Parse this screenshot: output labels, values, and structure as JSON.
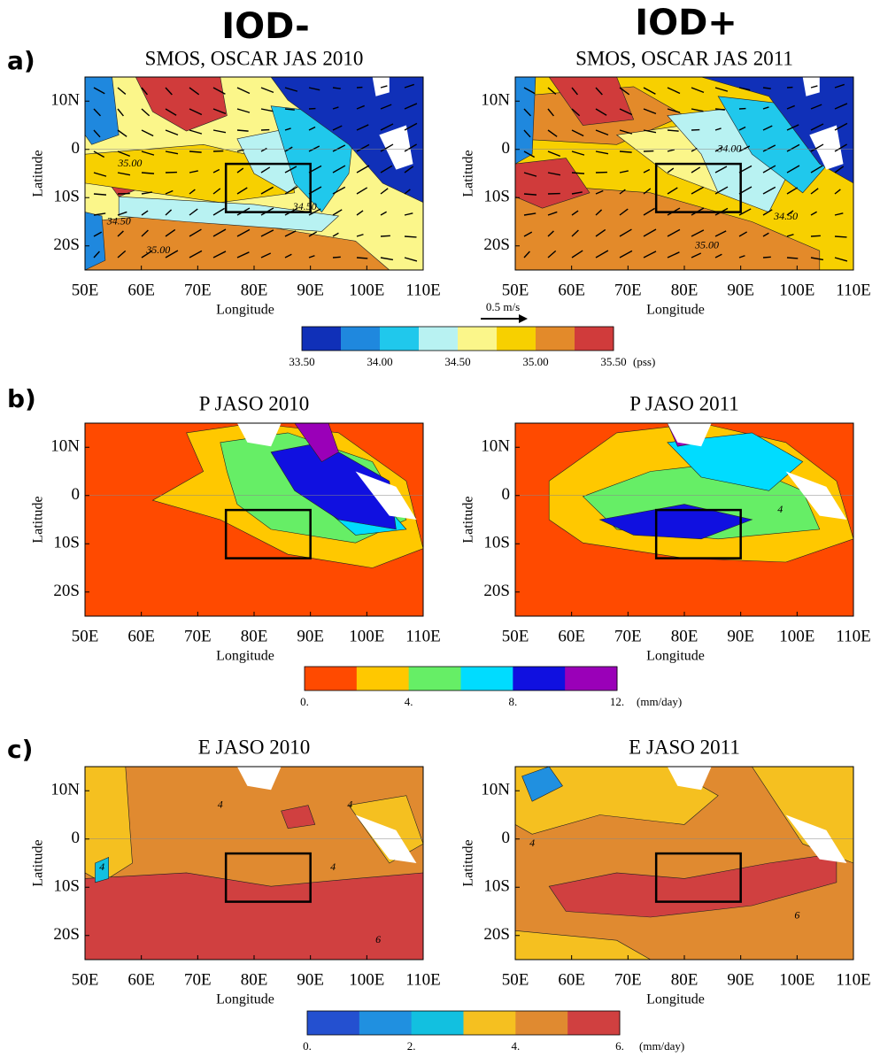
{
  "columns": [
    "IOD-",
    "IOD+"
  ],
  "axes": {
    "xlabel": "Longitude",
    "ylabel": "Latitude",
    "xlim": [
      50,
      110
    ],
    "ylim": [
      -25,
      15
    ],
    "xticks": [
      {
        "value": 50,
        "label": "50E"
      },
      {
        "value": 60,
        "label": "60E"
      },
      {
        "value": 70,
        "label": "70E"
      },
      {
        "value": 80,
        "label": "80E"
      },
      {
        "value": 90,
        "label": "90E"
      },
      {
        "value": 100,
        "label": "100E"
      },
      {
        "value": 110,
        "label": "110E"
      }
    ],
    "yticks": [
      {
        "value": 10,
        "label": "10N"
      },
      0,
      {
        "value": -10,
        "label": "10S"
      },
      {
        "value": -20,
        "label": "20S"
      }
    ],
    "box": {
      "lon": [
        75,
        90
      ],
      "lat": [
        -13,
        -3
      ]
    }
  },
  "rows": [
    {
      "label": "a)",
      "vector_key": "0.5 m/s",
      "panels": [
        {
          "title": "SMOS, OSCAR JAS 2010",
          "contour_labels": [
            {
              "text": "35.00",
              "lon": 58,
              "lat": -3
            },
            {
              "text": "34.50",
              "lon": 89,
              "lat": -12
            },
            {
              "text": "35.00",
              "lon": 63,
              "lat": -21
            },
            {
              "text": "34.50",
              "lon": 56,
              "lat": -15
            }
          ]
        },
        {
          "title": "SMOS, OSCAR JAS 2011",
          "contour_labels": [
            {
              "text": "34.00",
              "lon": 88,
              "lat": 0
            },
            {
              "text": "34.50",
              "lon": 98,
              "lat": -14
            },
            {
              "text": "35.00",
              "lon": 84,
              "lat": -20
            }
          ]
        }
      ],
      "colorbar": {
        "colors": [
          "#1030b8",
          "#1f88de",
          "#20c8ec",
          "#b8f2f2",
          "#fbf68a",
          "#f7d000",
          "#e38a2a",
          "#d03b3b"
        ],
        "lim": [
          33.5,
          35.5
        ],
        "ticks": [
          {
            "value": 33.5,
            "label": "33.50"
          },
          {
            "value": 34,
            "label": "34.00"
          },
          {
            "value": 34.5,
            "label": "34.50"
          },
          {
            "value": 35,
            "label": "35.00"
          },
          {
            "value": 35.5,
            "label": "35.50"
          }
        ],
        "unit": "(pss)"
      }
    },
    {
      "label": "b)",
      "panels": [
        {
          "title": "P JASO 2010",
          "contour_labels": []
        },
        {
          "title": "P JASO 2011",
          "contour_labels": [
            {
              "text": "4",
              "lon": 97,
              "lat": -3
            }
          ]
        }
      ],
      "colorbar": {
        "colors": [
          "#ff4a00",
          "#ffc800",
          "#66ee66",
          "#00dcff",
          "#1010e0",
          "#9a00b8"
        ],
        "lim": [
          0,
          12
        ],
        "ticks": [
          {
            "value": 0,
            "label": "0."
          },
          {
            "value": 4,
            "label": "4."
          },
          {
            "value": 8,
            "label": "8."
          },
          {
            "value": 12,
            "label": "12."
          }
        ],
        "unit": "(mm/day)"
      }
    },
    {
      "label": "c)",
      "panels": [
        {
          "title": "E JASO 2010",
          "contour_labels": [
            {
              "text": "4",
              "lon": 74,
              "lat": 7
            },
            {
              "text": "4",
              "lon": 97,
              "lat": 7
            },
            {
              "text": "4",
              "lon": 53,
              "lat": -6
            },
            {
              "text": "4",
              "lon": 94,
              "lat": -6
            },
            {
              "text": "6",
              "lon": 102,
              "lat": -21
            }
          ]
        },
        {
          "title": "E JASO 2011",
          "contour_labels": [
            {
              "text": "4",
              "lon": 53,
              "lat": -1
            },
            {
              "text": "6",
              "lon": 100,
              "lat": -16
            }
          ]
        }
      ],
      "colorbar": {
        "colors": [
          "#2450d0",
          "#2090e0",
          "#12c0e0",
          "#f5c020",
          "#e08a30",
          "#d04040"
        ],
        "lim": [
          0,
          6
        ],
        "ticks": [
          {
            "value": 0,
            "label": "0."
          },
          {
            "value": 2,
            "label": "2."
          },
          {
            "value": 4,
            "label": "4."
          },
          {
            "value": 6,
            "label": "6."
          }
        ],
        "unit": "(mm/day)"
      }
    }
  ]
}
